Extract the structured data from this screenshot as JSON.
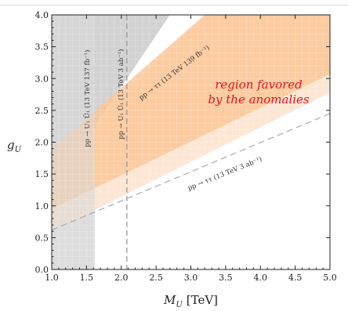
{
  "chart_data": {
    "type": "area",
    "title": "",
    "xlabel_var": "M",
    "xlabel_sub": "U",
    "xlabel_unit": "[TeV]",
    "ylabel_var": "g",
    "ylabel_sub": "U",
    "xlim": [
      1.0,
      5.0
    ],
    "ylim": [
      0.0,
      4.0
    ],
    "x_ticks": [
      "1.0",
      "1.5",
      "2.0",
      "2.5",
      "3.0",
      "3.5",
      "4.0",
      "4.5",
      "5.0"
    ],
    "y_ticks": [
      "0.0",
      "0.5",
      "1.0",
      "1.5",
      "2.0",
      "2.5",
      "3.0",
      "3.5",
      "4.0"
    ],
    "grid": true,
    "regions": [
      {
        "name": "excluded_pair_137",
        "color": "#e2e2e2",
        "x_max": 1.62
      },
      {
        "name": "excluded_tautau_139",
        "color": "#d2d2d2",
        "line": [
          [
            1.0,
            1.25
          ],
          [
            2.7,
            4.0
          ]
        ]
      },
      {
        "name": "favored_2sigma",
        "color": "#fde3cc",
        "lower": [
          [
            1.0,
            0.6
          ],
          [
            5.0,
            2.78
          ]
        ],
        "upper": [
          [
            1.0,
            1.6
          ],
          [
            3.2,
            4.0
          ]
        ]
      },
      {
        "name": "favored_1sigma",
        "color": "#fbc597",
        "lower": [
          [
            1.0,
            0.95
          ],
          [
            5.0,
            3.07
          ]
        ],
        "upper": [
          [
            1.0,
            1.9
          ],
          [
            3.2,
            4.0
          ]
        ]
      }
    ],
    "projections": [
      {
        "kind": "vertical",
        "x": 2.08,
        "color": "#999999"
      },
      {
        "kind": "line",
        "points": [
          [
            1.0,
            0.62
          ],
          [
            5.0,
            2.45
          ]
        ],
        "color": "#b0b0b0"
      }
    ],
    "annotations": {
      "pair_137": "pp → U₁ Ū₁ (13 TeV 137 fb⁻¹)",
      "pair_3ab": "pp → U₁ Ū₁ (13 TeV 3 ab⁻¹)",
      "tautau_139": "pp → ττ (13 TeV 139 fb⁻¹)",
      "tautau_3ab": "pp → ττ (13 TeV 3 ab⁻¹)",
      "region_line1": "region favored",
      "region_line2": "by the anomalies"
    }
  }
}
